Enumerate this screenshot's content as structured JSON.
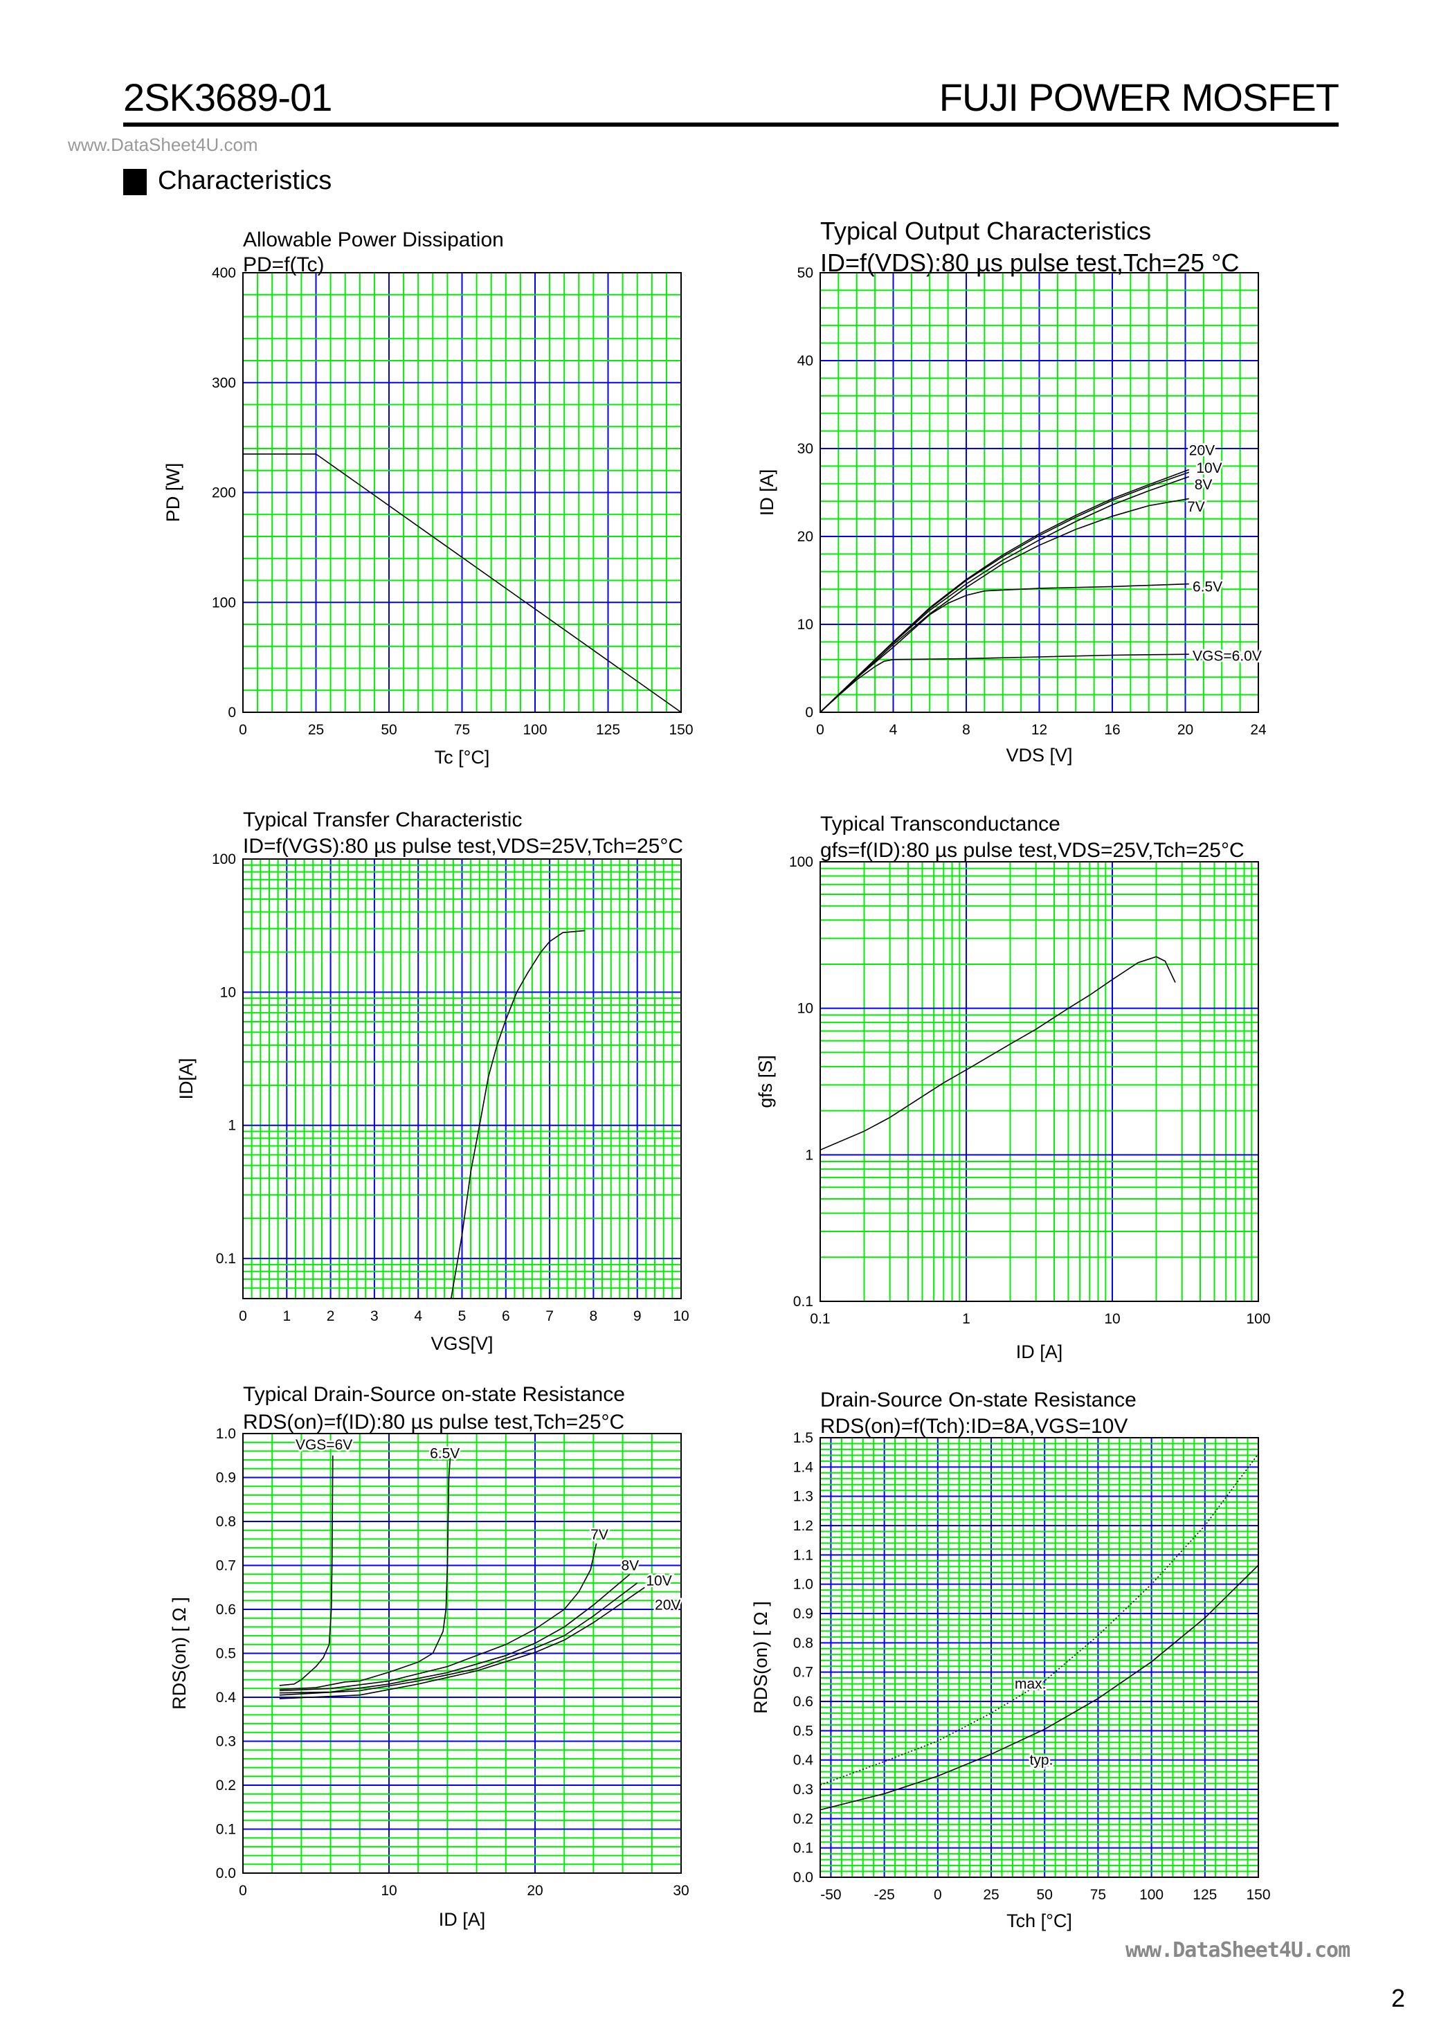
{
  "header": {
    "part_number": "2SK3689-01",
    "product_family": "FUJI POWER MOSFET",
    "watermark": "www.DataSheet4U.com",
    "section_title": "Characteristics"
  },
  "footer": {
    "watermark": "www.DataSheet4U.com",
    "page_number": "2"
  },
  "colors": {
    "grid_major": "#0000ff",
    "grid_minor": "#00ee00",
    "curve": "#000000",
    "frame": "#000000"
  },
  "chart_data": [
    {
      "type": "line",
      "title": "Allowable Power Dissipation",
      "subtitle": "PD=f(Tc)",
      "xlabel": "Tc [°C]",
      "ylabel": "PD [W]",
      "xscale": "linear",
      "yscale": "linear",
      "xlim": [
        0,
        150
      ],
      "ylim": [
        0,
        400
      ],
      "xticks": [
        0,
        25,
        50,
        75,
        100,
        125,
        150
      ],
      "yticks": [
        0,
        100,
        200,
        300,
        400
      ],
      "x_grid_major": 25,
      "x_grid_minor": 5,
      "y_grid_major": 100,
      "y_grid_minor": 20,
      "grid": true,
      "series": [
        {
          "points": [
            [
              0,
              235
            ],
            [
              25,
              235
            ],
            [
              150,
              0
            ]
          ]
        }
      ]
    },
    {
      "type": "line",
      "title": "Typical Output Characteristics",
      "subtitle": "ID=f(VDS):80 µs pulse test,Tch=25 °C",
      "xlabel": "VDS [V]",
      "ylabel": "ID [A]",
      "xscale": "linear",
      "yscale": "linear",
      "xlim": [
        0,
        24
      ],
      "ylim": [
        0,
        50
      ],
      "xticks": [
        0,
        4,
        8,
        12,
        16,
        20,
        24
      ],
      "yticks": [
        0,
        10,
        20,
        30,
        40,
        50
      ],
      "x_grid_major": 4,
      "x_grid_minor": 1,
      "y_grid_major": 10,
      "y_grid_minor": 2,
      "grid": true,
      "series": [
        {
          "name": "20V",
          "points": [
            [
              0,
              0
            ],
            [
              1,
              2
            ],
            [
              2,
              4
            ],
            [
              3,
              6
            ],
            [
              4,
              8
            ],
            [
              6,
              11.9
            ],
            [
              8,
              15.1
            ],
            [
              10,
              17.9
            ],
            [
              12,
              20.3
            ],
            [
              14,
              22.4
            ],
            [
              16,
              24.3
            ],
            [
              18,
              25.9
            ],
            [
              20.2,
              27.6
            ]
          ]
        },
        {
          "name": "10V",
          "points": [
            [
              0,
              0
            ],
            [
              1,
              2
            ],
            [
              2,
              4
            ],
            [
              3,
              6
            ],
            [
              4,
              8
            ],
            [
              6,
              11.8
            ],
            [
              8,
              15
            ],
            [
              10,
              17.7
            ],
            [
              12,
              20.1
            ],
            [
              14,
              22.2
            ],
            [
              16,
              24.1
            ],
            [
              18,
              25.7
            ],
            [
              20.2,
              27.3
            ]
          ]
        },
        {
          "name": "8V",
          "points": [
            [
              0,
              0
            ],
            [
              1,
              2
            ],
            [
              2,
              4
            ],
            [
              3,
              6
            ],
            [
              4,
              7.9
            ],
            [
              6,
              11.6
            ],
            [
              8,
              14.6
            ],
            [
              10,
              17.3
            ],
            [
              12,
              19.6
            ],
            [
              14,
              21.7
            ],
            [
              16,
              23.6
            ],
            [
              18,
              25.2
            ],
            [
              20.2,
              26.8
            ]
          ]
        },
        {
          "name": "7V",
          "points": [
            [
              0,
              0
            ],
            [
              1,
              2
            ],
            [
              2,
              3.9
            ],
            [
              4,
              7.7
            ],
            [
              6,
              11.2
            ],
            [
              8,
              14.2
            ],
            [
              10,
              16.9
            ],
            [
              12,
              19
            ],
            [
              14,
              20.8
            ],
            [
              16,
              22.3
            ],
            [
              18,
              23.5
            ],
            [
              20.2,
              24.3
            ]
          ]
        },
        {
          "name": "6.5V",
          "points": [
            [
              0,
              0
            ],
            [
              1,
              2
            ],
            [
              2,
              3.9
            ],
            [
              4,
              7.4
            ],
            [
              6,
              11.1
            ],
            [
              7,
              12.4
            ],
            [
              8,
              13.3
            ],
            [
              9,
              13.8
            ],
            [
              12,
              14.1
            ],
            [
              16,
              14.3
            ],
            [
              20.2,
              14.6
            ]
          ]
        },
        {
          "name": "VGS=6.0V",
          "points": [
            [
              0,
              0
            ],
            [
              1,
              1.9
            ],
            [
              2,
              3.7
            ],
            [
              3,
              5.2
            ],
            [
              3.5,
              5.8
            ],
            [
              4,
              6
            ],
            [
              8,
              6.1
            ],
            [
              12,
              6.3
            ],
            [
              16,
              6.5
            ],
            [
              20.2,
              6.6
            ]
          ]
        }
      ]
    },
    {
      "type": "line",
      "title": "Typical Transfer Characteristic",
      "subtitle": "ID=f(VGS):80 µs pulse test,VDS=25V,Tch=25°C",
      "xlabel": "VGS[V]",
      "ylabel": "ID[A]",
      "xscale": "linear",
      "yscale": "log",
      "xlim": [
        0,
        10
      ],
      "ylim": [
        0.05,
        100
      ],
      "xticks": [
        0,
        1,
        2,
        3,
        4,
        5,
        6,
        7,
        8,
        9,
        10
      ],
      "yticks": [
        0.1,
        1,
        10,
        100
      ],
      "x_grid_major": 1,
      "x_grid_minor": 0.2,
      "grid": true,
      "series": [
        {
          "points": [
            [
              4.75,
              0.05
            ],
            [
              5.0,
              0.15
            ],
            [
              5.2,
              0.45
            ],
            [
              5.4,
              1
            ],
            [
              5.6,
              2.3
            ],
            [
              5.8,
              4
            ],
            [
              6.0,
              6.2
            ],
            [
              6.25,
              10
            ],
            [
              6.5,
              14
            ],
            [
              6.8,
              20
            ],
            [
              7.0,
              24
            ],
            [
              7.3,
              28
            ],
            [
              7.8,
              29
            ]
          ]
        }
      ]
    },
    {
      "type": "line",
      "title": "Typical Transconductance",
      "subtitle": "gfs=f(ID):80 µs pulse test,VDS=25V,Tch=25°C",
      "xlabel": "ID [A]",
      "ylabel": "gfs [S]",
      "xscale": "log",
      "yscale": "log",
      "xlim": [
        0.1,
        100
      ],
      "ylim": [
        0.1,
        100
      ],
      "xticks": [
        0.1,
        1,
        10,
        100
      ],
      "yticks": [
        0.1,
        1,
        10,
        100
      ],
      "grid": true,
      "series": [
        {
          "points": [
            [
              0.1,
              1.08
            ],
            [
              0.2,
              1.45
            ],
            [
              0.3,
              1.8
            ],
            [
              0.5,
              2.5
            ],
            [
              0.7,
              3.1
            ],
            [
              1,
              3.8
            ],
            [
              2,
              5.7
            ],
            [
              3,
              7.2
            ],
            [
              5,
              10
            ],
            [
              7,
              12.3
            ],
            [
              10,
              15.7
            ],
            [
              15,
              20.5
            ],
            [
              20,
              22.5
            ],
            [
              23,
              21
            ],
            [
              27,
              15
            ]
          ]
        }
      ]
    },
    {
      "type": "line",
      "title": "Typical Drain-Source on-state Resistance",
      "subtitle": "RDS(on)=f(ID):80  µs pulse test,Tch=25°C",
      "xlabel": "ID [A]",
      "ylabel": "RDS(on) [ Ω ]",
      "xscale": "linear",
      "yscale": "linear",
      "xlim": [
        0,
        30
      ],
      "ylim": [
        0,
        1.0
      ],
      "xticks": [
        0,
        10,
        20,
        30
      ],
      "yticks": [
        "0.0",
        "0.1",
        "0.2",
        "0.3",
        "0.4",
        "0.5",
        "0.6",
        "0.7",
        "0.8",
        "0.9",
        "1.0"
      ],
      "x_grid_major": 10,
      "x_grid_minor": 2,
      "y_grid_major": 0.1,
      "y_grid_minor": 0.02,
      "grid": true,
      "series": [
        {
          "name": "VGS=6V",
          "points": [
            [
              2.5,
              0.427
            ],
            [
              3.5,
              0.43
            ],
            [
              4,
              0.44
            ],
            [
              5,
              0.47
            ],
            [
              5.5,
              0.49
            ],
            [
              5.9,
              0.52
            ],
            [
              6.05,
              0.6
            ],
            [
              6.1,
              0.7
            ],
            [
              6.15,
              0.95
            ]
          ]
        },
        {
          "name": "6.5V",
          "points": [
            [
              2.5,
              0.418
            ],
            [
              5,
              0.422
            ],
            [
              7,
              0.435
            ],
            [
              8,
              0.437
            ],
            [
              10,
              0.457
            ],
            [
              12,
              0.48
            ],
            [
              13,
              0.5
            ],
            [
              13.7,
              0.55
            ],
            [
              13.9,
              0.6
            ],
            [
              14,
              0.7
            ],
            [
              14.1,
              0.9
            ],
            [
              14.2,
              0.95
            ]
          ]
        },
        {
          "name": "7V",
          "points": [
            [
              2.5,
              0.415
            ],
            [
              6,
              0.42
            ],
            [
              10,
              0.437
            ],
            [
              14,
              0.47
            ],
            [
              18,
              0.52
            ],
            [
              20,
              0.555
            ],
            [
              22,
              0.6
            ],
            [
              23,
              0.64
            ],
            [
              23.8,
              0.69
            ],
            [
              24.2,
              0.75
            ]
          ]
        },
        {
          "name": "8V",
          "points": [
            [
              2.5,
              0.41
            ],
            [
              6,
              0.412
            ],
            [
              10,
              0.43
            ],
            [
              14,
              0.456
            ],
            [
              18,
              0.495
            ],
            [
              20,
              0.523
            ],
            [
              22,
              0.56
            ],
            [
              24,
              0.61
            ],
            [
              26.5,
              0.68
            ]
          ]
        },
        {
          "name": "10V",
          "points": [
            [
              2.5,
              0.405
            ],
            [
              8,
              0.415
            ],
            [
              12,
              0.437
            ],
            [
              16,
              0.465
            ],
            [
              20,
              0.512
            ],
            [
              22,
              0.54
            ],
            [
              24,
              0.585
            ],
            [
              27,
              0.66
            ]
          ]
        },
        {
          "name": "20V",
          "points": [
            [
              2.5,
              0.397
            ],
            [
              8,
              0.405
            ],
            [
              12,
              0.43
            ],
            [
              16,
              0.46
            ],
            [
              20,
              0.502
            ],
            [
              22,
              0.53
            ],
            [
              24,
              0.57
            ],
            [
              27.5,
              0.65
            ]
          ]
        }
      ]
    },
    {
      "type": "line",
      "title": "Drain-Source On-state Resistance",
      "subtitle": "RDS(on)=f(Tch):ID=8A,VGS=10V",
      "xlabel": "Tch [°C]",
      "ylabel": "RDS(on) [ Ω ]",
      "xscale": "linear",
      "yscale": "linear",
      "xlim": [
        -55,
        150
      ],
      "ylim": [
        0,
        1.5
      ],
      "xticks": [
        -50,
        -25,
        0,
        25,
        50,
        75,
        100,
        125,
        150
      ],
      "yticks": [
        "0.0",
        "0.1",
        "0.2",
        "0.3",
        "0.4",
        "0.5",
        "0.6",
        "0.7",
        "0.8",
        "0.9",
        "1.0",
        "1.1",
        "1.2",
        "1.3",
        "1.4",
        "1.5"
      ],
      "x_grid_major": 25,
      "x_grid_minor": 5,
      "y_grid_major": 0.1,
      "y_grid_minor": 0.02,
      "grid": true,
      "series": [
        {
          "name": "max.",
          "style": "dotted",
          "points": [
            [
              -55,
              0.315
            ],
            [
              -25,
              0.395
            ],
            [
              0,
              0.465
            ],
            [
              25,
              0.56
            ],
            [
              50,
              0.67
            ],
            [
              75,
              0.825
            ],
            [
              100,
              1.0
            ],
            [
              125,
              1.2
            ],
            [
              150,
              1.445
            ]
          ]
        },
        {
          "name": "typ.",
          "style": "solid",
          "points": [
            [
              -55,
              0.23
            ],
            [
              -25,
              0.285
            ],
            [
              0,
              0.345
            ],
            [
              25,
              0.42
            ],
            [
              50,
              0.505
            ],
            [
              75,
              0.61
            ],
            [
              100,
              0.735
            ],
            [
              125,
              0.885
            ],
            [
              150,
              1.065
            ]
          ]
        }
      ]
    }
  ]
}
